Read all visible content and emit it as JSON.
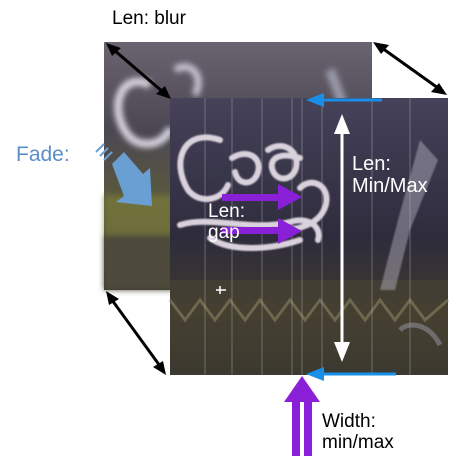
{
  "labels": {
    "blur": "Len: blur",
    "fade": "Fade:",
    "gap_line1": "Len:",
    "gap_line2": "gap",
    "minmax_line1": "Len:",
    "minmax_line2": "Min/Max",
    "width_line1": "Width:",
    "width_line2": "min/max"
  },
  "colors": {
    "background": "#ffffff",
    "label_black": "#000000",
    "label_white": "#ffffff",
    "fade_blue": "#5b8ec9",
    "arrow_black": "#000000",
    "arrow_white": "#ffffff",
    "arrow_light_blue": "#1a8fe8",
    "arrow_purple": "#8a1fd8",
    "arrow_steel_blue": "#6a9fd4"
  },
  "icons": {
    "back_image": "blurred-neon-sign-frame-image",
    "front_image": "neon-sign-frame-image"
  }
}
